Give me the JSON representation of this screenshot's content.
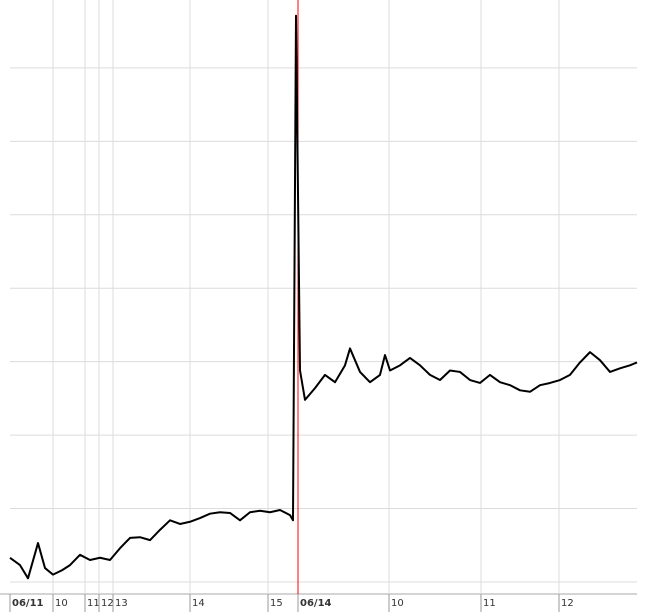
{
  "chart_data": {
    "type": "line",
    "x": [
      0,
      10,
      18,
      28,
      35,
      43,
      52,
      60,
      70,
      80,
      90,
      100,
      110,
      120,
      130,
      140,
      150,
      160,
      170,
      180,
      190,
      200,
      210,
      220,
      230,
      240,
      250,
      260,
      270,
      280,
      283,
      286,
      290,
      295,
      305,
      315,
      325,
      335,
      340,
      350,
      360,
      370,
      375,
      380,
      390,
      400,
      410,
      420,
      430,
      440,
      450,
      460,
      470,
      480,
      490,
      500,
      510,
      520,
      530,
      540,
      550,
      560,
      570,
      580,
      590,
      600,
      610,
      620,
      627
    ],
    "series": [
      {
        "color": "#000000",
        "values": [
          0.33,
          0.23,
          0.05,
          0.53,
          0.19,
          0.1,
          0.16,
          0.23,
          0.37,
          0.3,
          0.33,
          0.3,
          0.46,
          0.6,
          0.61,
          0.57,
          0.71,
          0.84,
          0.79,
          0.82,
          0.87,
          0.93,
          0.95,
          0.94,
          0.84,
          0.95,
          0.97,
          0.95,
          0.98,
          0.91,
          0.84,
          7.71,
          2.88,
          2.48,
          2.64,
          2.82,
          2.72,
          2.95,
          3.18,
          2.86,
          2.72,
          2.82,
          3.09,
          2.88,
          2.95,
          3.05,
          2.95,
          2.82,
          2.75,
          2.88,
          2.86,
          2.75,
          2.71,
          2.82,
          2.72,
          2.68,
          2.61,
          2.59,
          2.68,
          2.71,
          2.75,
          2.82,
          2.99,
          3.13,
          3.02,
          2.86,
          2.91,
          2.95,
          2.99
        ]
      }
    ],
    "xlim": [
      0,
      627
    ],
    "xticks": [
      {
        "value": 0,
        "label": "06/11"
      },
      {
        "value": 43,
        "label": "10"
      },
      {
        "value": 75,
        "label": "11"
      },
      {
        "value": 89,
        "label": "12"
      },
      {
        "value": 103,
        "label": "13"
      },
      {
        "value": 180,
        "label": "14"
      },
      {
        "value": 258,
        "label": "15"
      },
      {
        "value": 288,
        "label": "06/14"
      },
      {
        "value": 379,
        "label": "10"
      },
      {
        "value": 471,
        "label": "11"
      },
      {
        "value": 549,
        "label": "12"
      }
    ],
    "ylim": [
      0,
      7.72
    ],
    "ygrid": [
      0,
      1,
      2,
      3,
      4,
      5,
      6,
      7
    ],
    "grid": true,
    "day_break_color": "#ff0000"
  }
}
